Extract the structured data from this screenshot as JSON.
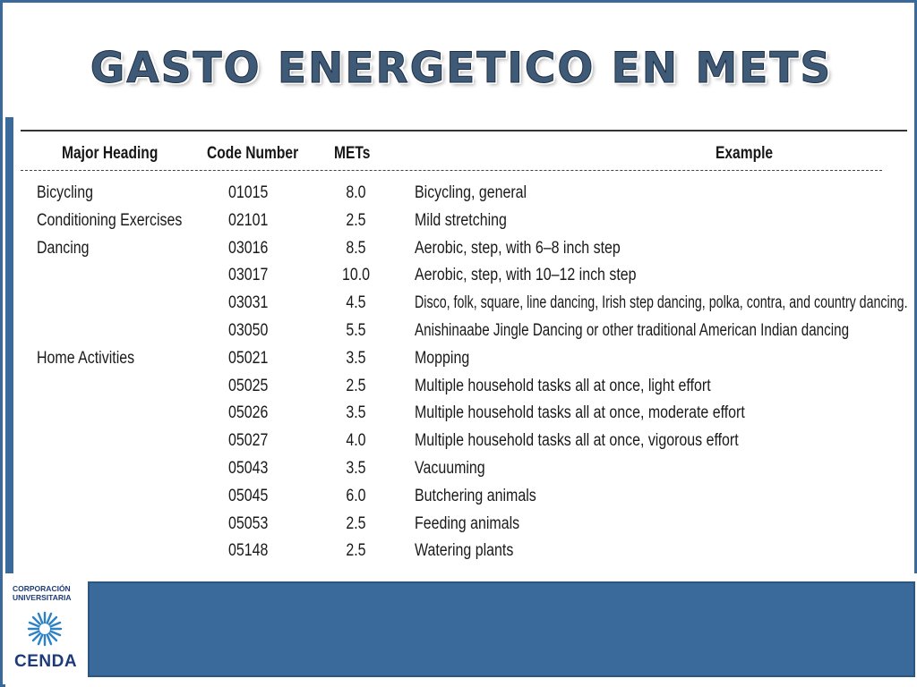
{
  "slide": {
    "title": "GASTO ENERGETICO EN METS"
  },
  "table": {
    "headers": {
      "major": "Major Heading",
      "code": "Code Number",
      "mets": "METs",
      "example": "Example"
    },
    "rows": [
      {
        "major": "Bicycling",
        "code": "01015",
        "mets": "8.0",
        "example": "Bicycling, general"
      },
      {
        "major": "Conditioning Exercises",
        "code": "02101",
        "mets": "2.5",
        "example": "Mild stretching"
      },
      {
        "major": "Dancing",
        "code": "03016",
        "mets": "8.5",
        "example": "Aerobic, step, with 6–8 inch step"
      },
      {
        "major": "",
        "code": "03017",
        "mets": "10.0",
        "example": "Aerobic, step, with 10–12 inch step"
      },
      {
        "major": "",
        "code": "03031",
        "mets": "4.5",
        "example": "Disco, folk, square, line dancing, Irish step dancing, polka, contra, and country dancing."
      },
      {
        "major": "",
        "code": "03050",
        "mets": "5.5",
        "example": "Anishinaabe Jingle Dancing or other traditional American Indian dancing"
      },
      {
        "major": "Home Activities",
        "code": "05021",
        "mets": "3.5",
        "example": "Mopping"
      },
      {
        "major": "",
        "code": "05025",
        "mets": "2.5",
        "example": "Multiple household tasks all at once, light effort"
      },
      {
        "major": "",
        "code": "05026",
        "mets": "3.5",
        "example": "Multiple household tasks all at once, moderate effort"
      },
      {
        "major": "",
        "code": "05027",
        "mets": "4.0",
        "example": "Multiple household tasks all at once, vigorous effort"
      },
      {
        "major": "",
        "code": "05043",
        "mets": "3.5",
        "example": "Vacuuming"
      },
      {
        "major": "",
        "code": "05045",
        "mets": "6.0",
        "example": "Butchering animals"
      },
      {
        "major": "",
        "code": "05053",
        "mets": "2.5",
        "example": "Feeding animals"
      },
      {
        "major": "",
        "code": "05148",
        "mets": "2.5",
        "example": "Watering plants"
      }
    ]
  },
  "logo": {
    "line1": "CORPORACIÓN",
    "line2": "UNIVERSITARIA",
    "name": "CENDA",
    "icon": "sun-rays-icon",
    "color": "#1d3b7a"
  },
  "colors": {
    "accent": "#3a6a9b"
  }
}
